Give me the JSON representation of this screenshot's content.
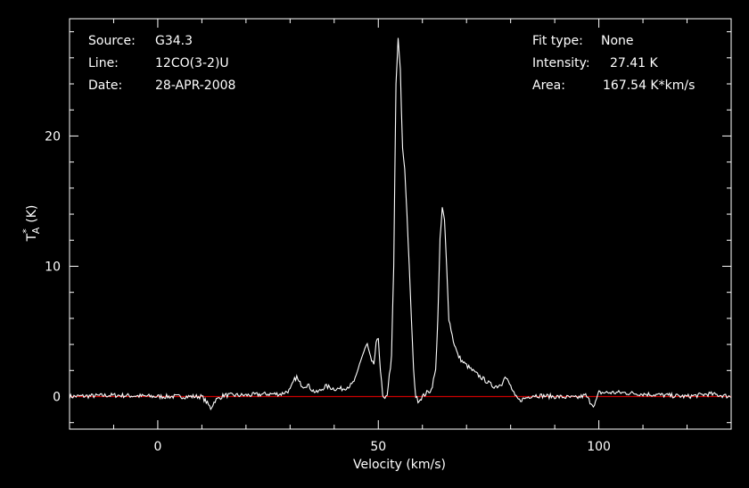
{
  "chart_data": {
    "type": "line",
    "info": {
      "source_label": "Source:",
      "source": "G34.3",
      "line_label": "Line:",
      "line": "12CO(3-2)U",
      "date_label": "Date:",
      "date": "28-APR-2008",
      "fit_label": "Fit type:",
      "fit": "None",
      "intensity_label": "Intensity:",
      "intensity": "27.41 K",
      "area_label": "Area:",
      "area": "167.54 K*km/s"
    },
    "xlabel": "Velocity (km/s)",
    "ylabel_main": "T",
    "ylabel_sup": "*",
    "ylabel_sub": "A",
    "ylabel_unit": "(K)",
    "xlim": [
      -20,
      130
    ],
    "ylim": [
      -2.5,
      29
    ],
    "xticks": [
      0,
      50,
      100
    ],
    "yticks": [
      0,
      10,
      20
    ],
    "baseline": 0,
    "colors": {
      "frame": "#ffffff",
      "spectrum": "#ffffff",
      "baseline": "#cc0000",
      "background": "#000000"
    },
    "series": [
      {
        "x": [
          -20,
          -10,
          0,
          10,
          11,
          12,
          13,
          15,
          20,
          25,
          28,
          30,
          31,
          31.5,
          32,
          33,
          34,
          35,
          36,
          37,
          38,
          40,
          42,
          44,
          45,
          46,
          47,
          47.5,
          48,
          48.5,
          49,
          49.5,
          50,
          50.5,
          51,
          51.5,
          52,
          53,
          53.5,
          54,
          54.5,
          55,
          55.5,
          56,
          56.5,
          57,
          57.5,
          58,
          58.5,
          59,
          59.5,
          60,
          61,
          62,
          63,
          63.5,
          64,
          64.5,
          65,
          65.5,
          66,
          67,
          68,
          69,
          70,
          72,
          74,
          76,
          77,
          78,
          78.5,
          79,
          80,
          81,
          82,
          85,
          90,
          95,
          97,
          98,
          99,
          100,
          105,
          110,
          115,
          120,
          125,
          130
        ],
        "y": [
          0,
          0.1,
          0,
          0,
          -0.4,
          -0.9,
          -0.3,
          0.1,
          0.1,
          0.2,
          0.2,
          0.5,
          1.3,
          1.5,
          1.1,
          0.8,
          0.9,
          0.5,
          0.3,
          0.5,
          0.8,
          0.6,
          0.6,
          0.9,
          1.5,
          2.8,
          3.7,
          4.0,
          3.3,
          2.6,
          2.5,
          4.0,
          4.5,
          2.0,
          0,
          -0.3,
          0.2,
          3.0,
          10,
          24,
          27.4,
          25,
          19,
          17.5,
          14,
          10,
          6,
          2,
          0,
          -0.3,
          -0.2,
          0,
          0.3,
          0.5,
          2.0,
          6,
          12,
          14.5,
          13.5,
          10,
          6,
          4.3,
          3.2,
          2.7,
          2.4,
          1.8,
          1.3,
          0.8,
          0.8,
          1.0,
          1.5,
          1.4,
          0.8,
          0,
          -0.3,
          0.1,
          0,
          -0.1,
          0.1,
          -0.4,
          -0.7,
          0.3,
          0.3,
          0.2,
          0.1,
          0,
          0.2,
          0
        ]
      }
    ]
  }
}
